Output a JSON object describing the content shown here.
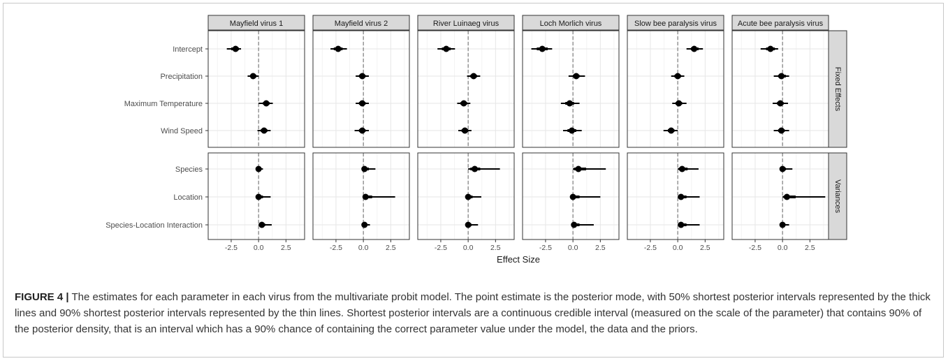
{
  "chart_data": {
    "type": "scatter",
    "subtype": "faceted point-interval (coefficient) plot",
    "facet_columns": [
      "Mayfield virus 1",
      "Mayfield virus 2",
      "River Luinaeg virus",
      "Loch Morlich virus",
      "Slow bee paralysis virus",
      "Acute bee paralysis virus"
    ],
    "facet_rows": [
      {
        "label": "Fixed Effects",
        "parameters": [
          "Intercept",
          "Precipitation",
          "Maximum Temperature",
          "Wind Speed"
        ]
      },
      {
        "label": "Variances",
        "parameters": [
          "Species",
          "Location",
          "Species-Location Interaction"
        ]
      }
    ],
    "xlabel": "Effect Size",
    "xlim": [
      -4.6,
      4.2
    ],
    "x_ticks": [
      -2.5,
      0.0,
      2.5
    ],
    "x_tick_labels": [
      "-2.5",
      "0.0",
      "2.5"
    ],
    "reference_line": 0,
    "grid": true,
    "estimates": [
      [
        {
          "mode": -2.1,
          "i50": [
            -2.5,
            -1.8
          ],
          "i90": [
            -2.9,
            -1.6
          ]
        },
        {
          "mode": -0.5,
          "i50": [
            -0.7,
            -0.2
          ],
          "i90": [
            -1.0,
            0.0
          ]
        },
        {
          "mode": 0.7,
          "i50": [
            0.4,
            1.0
          ],
          "i90": [
            0.0,
            1.3
          ]
        },
        {
          "mode": 0.5,
          "i50": [
            0.2,
            0.8
          ],
          "i90": [
            -0.1,
            1.1
          ]
        },
        {
          "mode": 0.0,
          "i50": [
            0.0,
            0.2
          ],
          "i90": [
            0.0,
            0.4
          ]
        },
        {
          "mode": 0.0,
          "i50": [
            0.0,
            0.4
          ],
          "i90": [
            0.0,
            1.1
          ]
        },
        {
          "mode": 0.3,
          "i50": [
            0.1,
            0.6
          ],
          "i90": [
            0.0,
            1.2
          ]
        }
      ],
      [
        {
          "mode": -2.3,
          "i50": [
            -2.7,
            -1.9
          ],
          "i90": [
            -3.0,
            -1.5
          ]
        },
        {
          "mode": -0.1,
          "i50": [
            -0.4,
            0.2
          ],
          "i90": [
            -0.7,
            0.5
          ]
        },
        {
          "mode": -0.1,
          "i50": [
            -0.4,
            0.2
          ],
          "i90": [
            -0.7,
            0.5
          ]
        },
        {
          "mode": -0.1,
          "i50": [
            -0.4,
            0.2
          ],
          "i90": [
            -0.8,
            0.5
          ]
        },
        {
          "mode": 0.1,
          "i50": [
            0.0,
            0.5
          ],
          "i90": [
            0.0,
            1.1
          ]
        },
        {
          "mode": 0.2,
          "i50": [
            0.1,
            0.8
          ],
          "i90": [
            0.0,
            2.9
          ]
        },
        {
          "mode": 0.1,
          "i50": [
            0.0,
            0.3
          ],
          "i90": [
            0.0,
            0.6
          ]
        }
      ],
      [
        {
          "mode": -2.0,
          "i50": [
            -2.4,
            -1.6
          ],
          "i90": [
            -2.8,
            -1.2
          ]
        },
        {
          "mode": 0.5,
          "i50": [
            0.2,
            0.8
          ],
          "i90": [
            -0.1,
            1.1
          ]
        },
        {
          "mode": -0.4,
          "i50": [
            -0.7,
            -0.1
          ],
          "i90": [
            -1.0,
            0.2
          ]
        },
        {
          "mode": -0.3,
          "i50": [
            -0.6,
            0.0
          ],
          "i90": [
            -0.9,
            0.3
          ]
        },
        {
          "mode": 0.6,
          "i50": [
            0.2,
            1.1
          ],
          "i90": [
            0.0,
            2.9
          ]
        },
        {
          "mode": 0.0,
          "i50": [
            0.0,
            0.4
          ],
          "i90": [
            0.0,
            1.2
          ]
        },
        {
          "mode": 0.0,
          "i50": [
            0.0,
            0.3
          ],
          "i90": [
            0.0,
            0.9
          ]
        }
      ],
      [
        {
          "mode": -2.8,
          "i50": [
            -3.3,
            -2.3
          ],
          "i90": [
            -3.8,
            -1.9
          ]
        },
        {
          "mode": 0.3,
          "i50": [
            0.0,
            0.6
          ],
          "i90": [
            -0.4,
            1.1
          ]
        },
        {
          "mode": -0.3,
          "i50": [
            -0.7,
            0.1
          ],
          "i90": [
            -1.1,
            0.6
          ]
        },
        {
          "mode": -0.1,
          "i50": [
            -0.5,
            0.3
          ],
          "i90": [
            -0.9,
            0.8
          ]
        },
        {
          "mode": 0.5,
          "i50": [
            0.1,
            1.2
          ],
          "i90": [
            0.0,
            3.0
          ]
        },
        {
          "mode": 0.0,
          "i50": [
            0.0,
            0.6
          ],
          "i90": [
            0.0,
            2.5
          ]
        },
        {
          "mode": 0.1,
          "i50": [
            0.0,
            0.6
          ],
          "i90": [
            0.0,
            1.9
          ]
        }
      ],
      [
        {
          "mode": 1.5,
          "i50": [
            1.2,
            1.9
          ],
          "i90": [
            0.8,
            2.3
          ]
        },
        {
          "mode": 0.0,
          "i50": [
            -0.3,
            0.3
          ],
          "i90": [
            -0.6,
            0.6
          ]
        },
        {
          "mode": 0.1,
          "i50": [
            -0.2,
            0.4
          ],
          "i90": [
            -0.5,
            0.8
          ]
        },
        {
          "mode": -0.6,
          "i50": [
            -0.9,
            -0.3
          ],
          "i90": [
            -1.3,
            0.0
          ]
        },
        {
          "mode": 0.4,
          "i50": [
            0.1,
            0.9
          ],
          "i90": [
            0.0,
            1.9
          ]
        },
        {
          "mode": 0.3,
          "i50": [
            0.1,
            0.8
          ],
          "i90": [
            0.0,
            2.0
          ]
        },
        {
          "mode": 0.3,
          "i50": [
            0.1,
            0.8
          ],
          "i90": [
            0.0,
            2.0
          ]
        }
      ],
      [
        {
          "mode": -1.1,
          "i50": [
            -1.5,
            -0.7
          ],
          "i90": [
            -2.0,
            -0.4
          ]
        },
        {
          "mode": -0.1,
          "i50": [
            -0.4,
            0.3
          ],
          "i90": [
            -0.8,
            0.6
          ]
        },
        {
          "mode": -0.2,
          "i50": [
            -0.5,
            0.1
          ],
          "i90": [
            -0.9,
            0.5
          ]
        },
        {
          "mode": -0.1,
          "i50": [
            -0.4,
            0.2
          ],
          "i90": [
            -0.8,
            0.6
          ]
        },
        {
          "mode": 0.0,
          "i50": [
            0.0,
            0.3
          ],
          "i90": [
            0.0,
            0.9
          ]
        },
        {
          "mode": 0.4,
          "i50": [
            0.1,
            1.2
          ],
          "i90": [
            0.0,
            3.9
          ]
        },
        {
          "mode": 0.0,
          "i50": [
            0.0,
            0.2
          ],
          "i90": [
            0.0,
            0.6
          ]
        }
      ]
    ]
  },
  "caption": {
    "label": "FIGURE 4 |",
    "text": " The estimates for each parameter in each virus from the multivariate probit model. The point estimate is the posterior mode, with 50% shortest posterior intervals represented by the thick lines and 90% shortest posterior intervals represented by the thin lines. Shortest posterior intervals are a continuous credible interval (measured on the scale of the parameter) that contains 90% of the posterior density, that is an interval which has a 90% chance of containing the correct parameter value under the model, the data and the priors."
  },
  "colors": {
    "strip_fill": "#d9d9d9",
    "panel_border": "#333333",
    "grid_major": "#e6e6e6",
    "grid_minor": "#f3f3f3",
    "estimate": "#000000",
    "zero_line": "#666666"
  }
}
